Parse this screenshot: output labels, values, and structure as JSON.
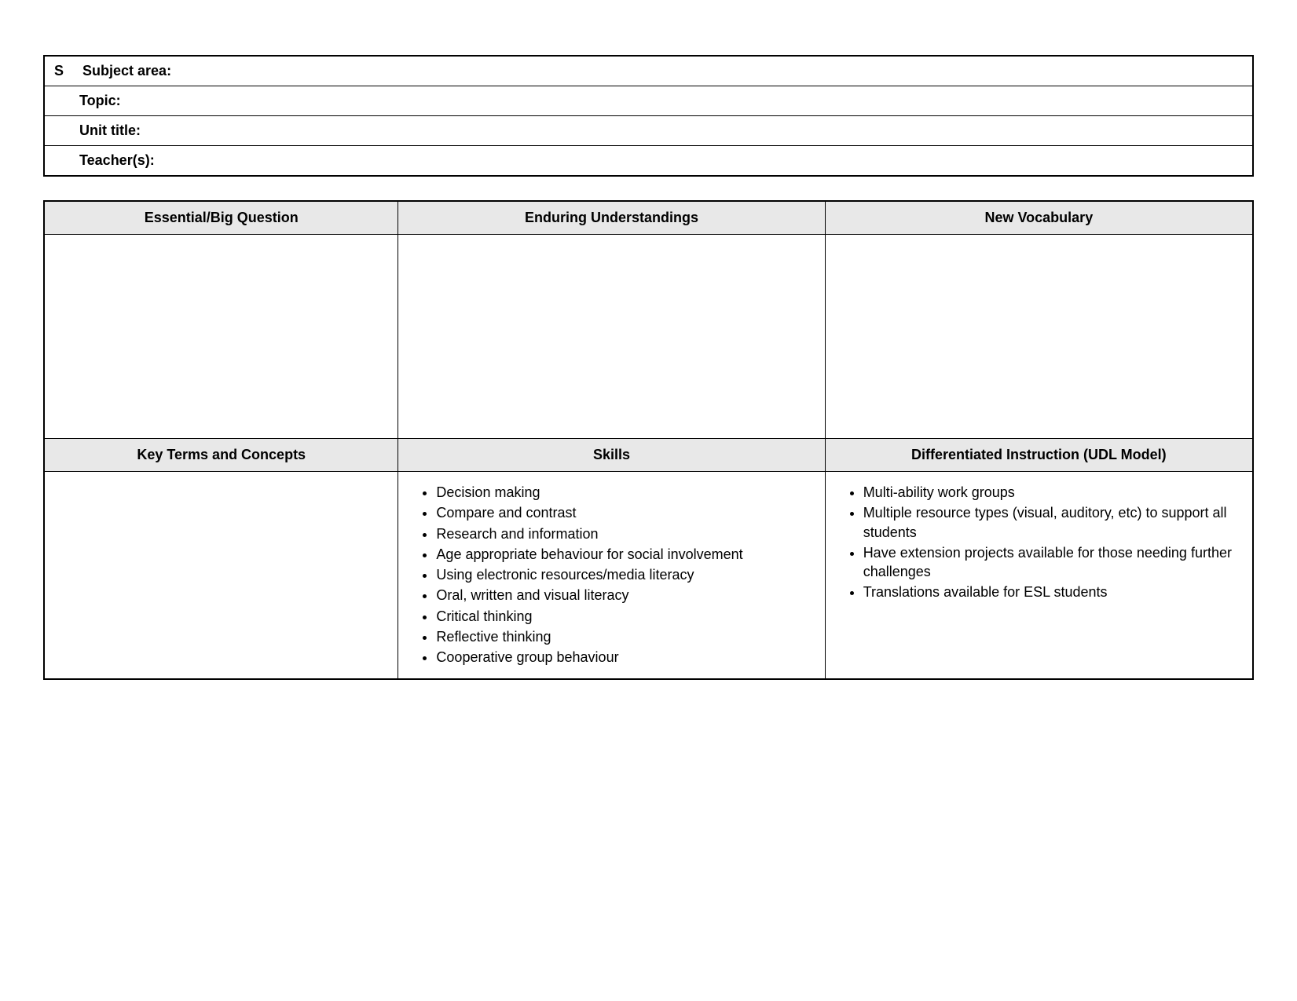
{
  "header": {
    "s_prefix": "S",
    "subject_area_label": "Subject area:",
    "topic_label": "Topic:",
    "unit_title_label": "Unit title:",
    "teachers_label": "Teacher(s):"
  },
  "columns_row1": {
    "col1": "Essential/Big Question",
    "col2": "Enduring Understandings",
    "col3": "New Vocabulary"
  },
  "columns_row2": {
    "col1": "Key Terms and Concepts",
    "col2": "Skills",
    "col3": "Differentiated Instruction (UDL Model)"
  },
  "skills": [
    "Decision making",
    "Compare and contrast",
    "Research and information",
    "Age appropriate behaviour for social involvement",
    "Using electronic resources/media literacy",
    "Oral, written and visual literacy",
    "Critical thinking",
    "Reflective thinking",
    "Cooperative group behaviour"
  ],
  "udl": [
    "Multi-ability work groups",
    "Multiple resource types (visual, auditory, etc) to support all students",
    "Have extension projects available for those needing further challenges",
    "Translations available for ESL students"
  ]
}
